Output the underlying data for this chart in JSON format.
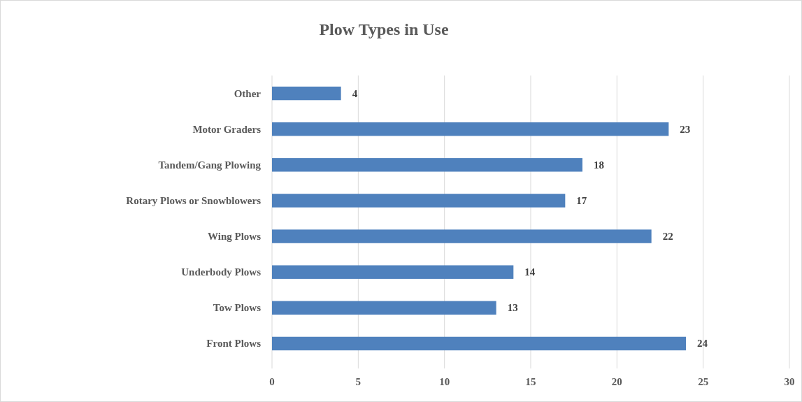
{
  "chart_data": {
    "type": "bar",
    "orientation": "horizontal",
    "title": "Plow Types in Use",
    "categories": [
      "Other",
      "Motor Graders",
      "Tandem/Gang Plowing",
      "Rotary Plows or Snowblowers",
      "Wing Plows",
      "Underbody Plows",
      "Tow Plows",
      "Front Plows"
    ],
    "values": [
      4,
      23,
      18,
      17,
      22,
      14,
      13,
      24
    ],
    "color": "#4f81bd",
    "xlim": [
      0,
      30
    ],
    "xticks": [
      0,
      5,
      10,
      15,
      20,
      25,
      30
    ],
    "grid": "x",
    "data_labels": true
  }
}
